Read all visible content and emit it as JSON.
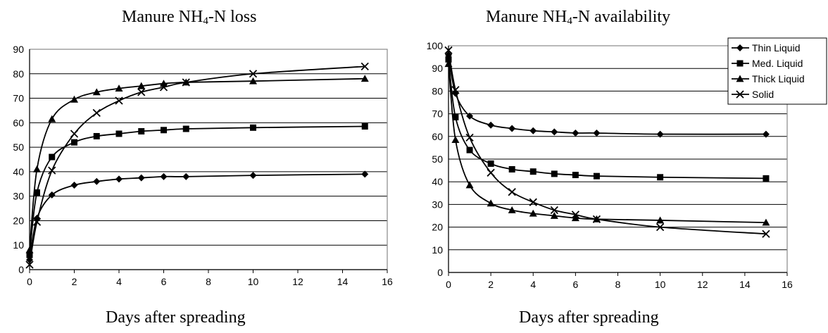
{
  "chart_data": [
    {
      "type": "line",
      "title_main": "Manure NH",
      "title_sub": "4",
      "title_rest": "-N loss",
      "xlabel": "Days after spreading",
      "ylabel": "",
      "xlim": [
        0,
        16
      ],
      "ylim": [
        0,
        90
      ],
      "xticks": [
        0,
        2,
        4,
        6,
        8,
        10,
        12,
        14,
        16
      ],
      "yticks": [
        0,
        10,
        20,
        30,
        40,
        50,
        60,
        70,
        80,
        90
      ],
      "grid": "horizontal",
      "x": [
        0,
        0.33,
        1,
        2,
        3,
        4,
        5,
        6,
        7,
        10,
        15
      ],
      "series": [
        {
          "name": "Thin Liquid",
          "marker": "diamond",
          "values": [
            4,
            21,
            30.5,
            34.5,
            36,
            37,
            37.5,
            38,
            38,
            38.5,
            39
          ]
        },
        {
          "name": "Med. Liquid",
          "marker": "square",
          "values": [
            6,
            31.5,
            46,
            52,
            54.5,
            55.5,
            56.5,
            57,
            57.5,
            58,
            58.5
          ]
        },
        {
          "name": "Thick Liquid",
          "marker": "triangle",
          "values": [
            8,
            41,
            61.5,
            69.5,
            72.5,
            74,
            75,
            76,
            76.5,
            77,
            78
          ]
        },
        {
          "name": "Solid",
          "marker": "x",
          "values": [
            2,
            19.5,
            40.5,
            55.5,
            64,
            69,
            72.5,
            74.5,
            76.5,
            80,
            83
          ]
        }
      ]
    },
    {
      "type": "line",
      "title_main": "Manure NH",
      "title_sub": "4",
      "title_rest": "-N availability",
      "xlabel": "Days after spreading",
      "ylabel": "",
      "xlim": [
        0,
        16
      ],
      "ylim": [
        0,
        100
      ],
      "xticks": [
        0,
        2,
        4,
        6,
        8,
        10,
        12,
        14,
        16
      ],
      "yticks": [
        0,
        10,
        20,
        30,
        40,
        50,
        60,
        70,
        80,
        90,
        100
      ],
      "grid": "horizontal",
      "legend": "top-right",
      "x": [
        0,
        0.33,
        1,
        2,
        3,
        4,
        5,
        6,
        7,
        10,
        15
      ],
      "series": [
        {
          "name": "Thin Liquid",
          "marker": "diamond",
          "values": [
            96,
            79,
            69,
            65,
            63.5,
            62.5,
            62,
            61.5,
            61.5,
            61,
            61
          ]
        },
        {
          "name": "Med. Liquid",
          "marker": "square",
          "values": [
            94,
            68.5,
            54,
            48,
            45.5,
            44.5,
            43.5,
            43,
            42.5,
            42,
            41.5
          ]
        },
        {
          "name": "Thick Liquid",
          "marker": "triangle",
          "values": [
            92,
            58.5,
            38.5,
            30.5,
            27.5,
            26,
            25,
            24,
            23.5,
            23,
            22
          ]
        },
        {
          "name": "Solid",
          "marker": "x",
          "values": [
            98,
            80.5,
            59.5,
            44,
            35.5,
            31,
            27.5,
            25.5,
            23.5,
            20,
            17
          ]
        }
      ]
    }
  ]
}
